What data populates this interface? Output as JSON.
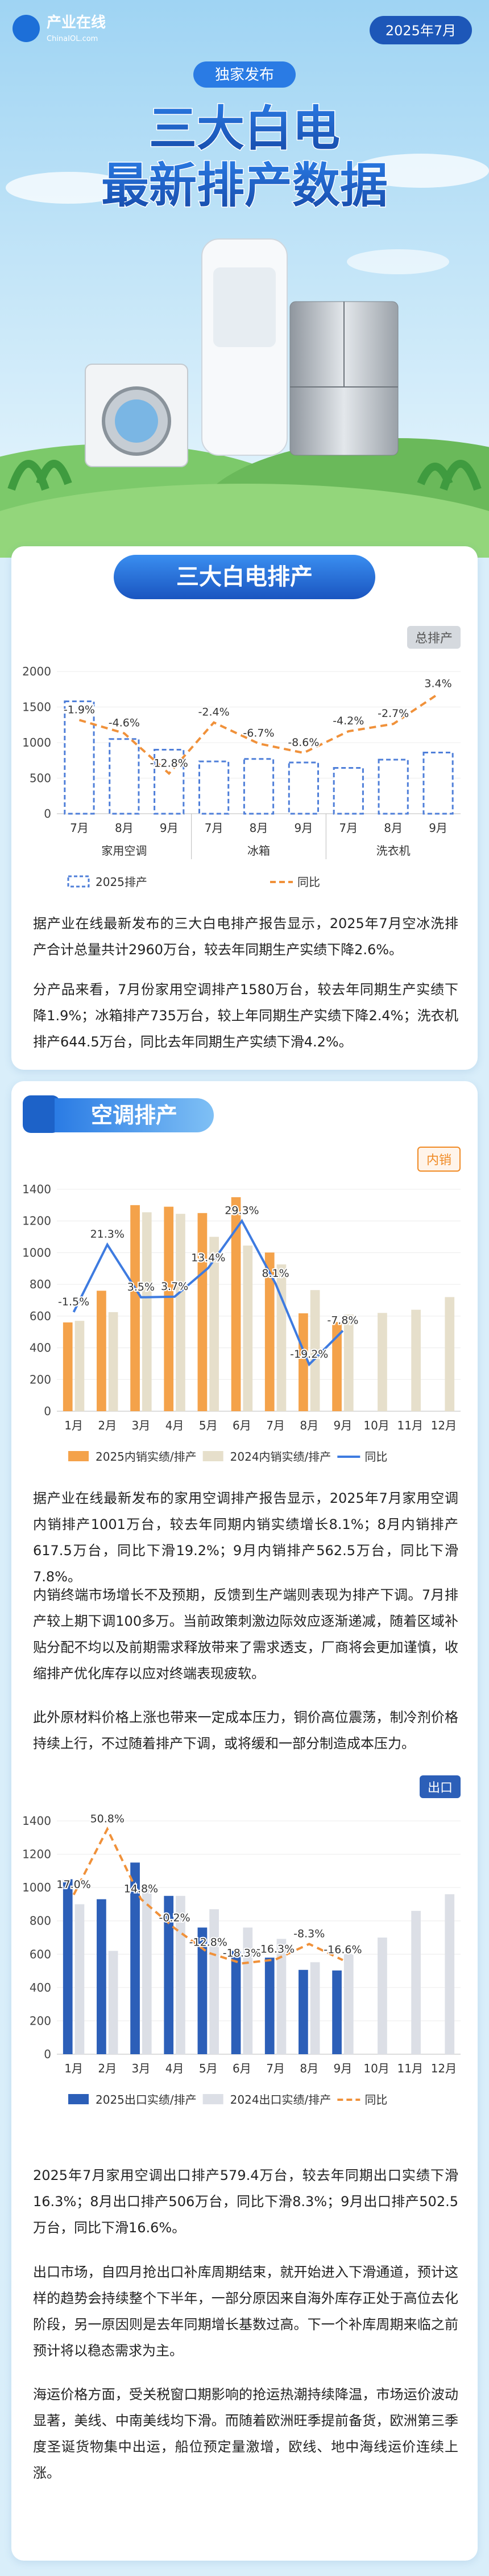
{
  "header": {
    "logo": "产业在线",
    "logo_sub": "ChinaIOL.com",
    "date": "2025年7月",
    "tag": "独家发布",
    "title_line1": "三大白电",
    "title_line2": "最新排产数据"
  },
  "sections": [
    {
      "title": "三大白电排产",
      "paragraphs": [
        "据产业在线最新发布的三大白电排产报告显示，2025年7月空冰洗排产合计总量共计2960万台，较去年同期生产实绩下降2.6%。",
        "分产品来看，7月份家用空调排产1580万台，较去年同期生产实绩下降1.9%；冰箱排产735万台，较上年同期生产实绩下降2.4%；洗衣机排产644.5万台，同比去年同期生产实绩下滑4.2%。"
      ]
    },
    {
      "title": "空调排产",
      "paragraphs": [
        "据产业在线最新发布的家用空调排产报告显示，2025年7月家用空调内销排产1001万台，较去年同期内销实绩增长8.1%；8月内销排产617.5万台，同比下滑19.2%；9月内销排产562.5万台，同比下滑7.8%。",
        "内销终端市场增长不及预期，反馈到生产端则表现为排产下调。7月排产较上期下调100多万。当前政策刺激边际效应逐渐递减，随着区域补贴分配不均以及前期需求释放带来了需求透支，厂商将会更加谨慎，收缩排产优化库存以应对终端表现疲软。",
        "此外原材料价格上涨也带来一定成本压力，铜价高位震荡，制冷剂价格持续上行，不过随着排产下调，或将缓和一部分制造成本压力。"
      ],
      "paragraphs_export": [
        "2025年7月家用空调出口排产579.4万台，较去年同期出口实绩下滑16.3%；8月出口排产506万台，同比下滑8.3%；9月出口排产502.5万台，同比下滑16.6%。",
        "出口市场，自四月抢出口补库周期结束，就开始进入下滑通道，预计这样的趋势会持续整个下半年，一部分原因来自海外库存正处于高位去化阶段，另一原因则是去年同期增长基数过高。下一个补库周期来临之前预计将以稳态需求为主。",
        "海运价格方面，受关税窗口期影响的抢运热潮持续降温，市场运价波动显著，美线、中南美线均下滑。而随着欧洲旺季提前备货，欧洲第三季度圣诞货物集中出运，船位预定量激增，欧线、地中海线运价连续上涨。"
      ]
    }
  ],
  "chart_data": [
    {
      "type": "bar",
      "badge": "总排产",
      "groups": [
        {
          "name": "家用空调",
          "categories": [
            "7月",
            "8月",
            "9月"
          ]
        },
        {
          "name": "冰箱",
          "categories": [
            "7月",
            "8月",
            "9月"
          ]
        },
        {
          "name": "洗衣机",
          "categories": [
            "7月",
            "8月",
            "9月"
          ]
        }
      ],
      "ylim": [
        0,
        2000
      ],
      "yticks": [
        0,
        500,
        1000,
        1500,
        2000
      ],
      "y2lim": [
        -21,
        8
      ],
      "grid": true,
      "series": [
        {
          "name": "2025排产",
          "type": "bar",
          "color": "#4f7fd9",
          "dashed": true,
          "values": [
            1580,
            1050,
            900,
            735,
            770,
            720,
            644.5,
            760,
            860
          ]
        },
        {
          "name": "同比",
          "type": "line",
          "axis": "y2",
          "color": "#f0913a",
          "dashed": true,
          "values": [
            -1.9,
            -4.6,
            -12.8,
            -2.4,
            -6.7,
            -8.6,
            -4.2,
            -2.7,
            3.4
          ],
          "value_labels": [
            "-1.9%",
            "-4.6%",
            "-12.8%",
            "-2.4%",
            "-6.7%",
            "-8.6%",
            "-4.2%",
            "-2.7%",
            "3.4%"
          ]
        }
      ]
    },
    {
      "type": "bar",
      "badge": "内销",
      "categories": [
        "1月",
        "2月",
        "3月",
        "4月",
        "5月",
        "6月",
        "7月",
        "8月",
        "9月",
        "10月",
        "11月",
        "12月"
      ],
      "ylim": [
        0,
        1400
      ],
      "yticks": [
        0,
        200,
        400,
        600,
        800,
        1000,
        1200,
        1400
      ],
      "y2lim": [
        -35,
        40
      ],
      "grid": true,
      "series": [
        {
          "name": "2025内销实绩/排产",
          "type": "bar",
          "color": "#f4a24a",
          "values": [
            560,
            760,
            1300,
            1290,
            1250,
            1350,
            1001,
            617.5,
            562.5,
            null,
            null,
            null
          ]
        },
        {
          "name": "2024内销实绩/排产",
          "type": "bar",
          "color": "#e6dfcb",
          "values": [
            570,
            625,
            1255,
            1245,
            1100,
            1045,
            926,
            764,
            610,
            620,
            640,
            720
          ]
        },
        {
          "name": "同比",
          "type": "line",
          "axis": "y2",
          "color": "#3e7be0",
          "values": [
            -1.5,
            21.3,
            3.5,
            3.7,
            13.4,
            29.3,
            8.1,
            -19.2,
            -7.8,
            null,
            null,
            null
          ],
          "value_labels": [
            "-1.5%",
            "21.3%",
            "3.5%",
            "3.7%",
            "13.4%",
            "29.3%",
            "8.1%",
            "-19.2%",
            "-7.8%",
            null,
            null,
            null
          ]
        }
      ]
    },
    {
      "type": "bar",
      "badge": "出口",
      "categories": [
        "1月",
        "2月",
        "3月",
        "4月",
        "5月",
        "6月",
        "7月",
        "8月",
        "9月",
        "10月",
        "11月",
        "12月"
      ],
      "ylim": [
        0,
        1400
      ],
      "yticks": [
        0,
        200,
        400,
        600,
        800,
        1000,
        1200,
        1400
      ],
      "y2lim": [
        -65,
        55
      ],
      "grid": true,
      "series": [
        {
          "name": "2025出口实绩/排产",
          "type": "bar",
          "color": "#2c5fb8",
          "values": [
            1050,
            930,
            1150,
            950,
            760,
            620,
            579.4,
            506,
            502.5,
            null,
            null,
            null
          ]
        },
        {
          "name": "2024出口实绩/排产",
          "type": "bar",
          "color": "#dcdfe6",
          "values": [
            900,
            620,
            1000,
            950,
            870,
            760,
            692,
            552,
            602,
            700,
            860,
            960
          ]
        },
        {
          "name": "同比",
          "type": "line",
          "axis": "y2",
          "color": "#f0913a",
          "dashed": true,
          "values": [
            17.0,
            50.8,
            14.8,
            -0.2,
            -12.8,
            -18.3,
            -16.3,
            -8.3,
            -16.6,
            null,
            null,
            null
          ],
          "value_labels": [
            "17.0%",
            "50.8%",
            "14.8%",
            "-0.2%",
            "-12.8%",
            "-18.3%",
            "-16.3%",
            "-8.3%",
            "-16.6%",
            null,
            null,
            null
          ]
        }
      ]
    }
  ]
}
